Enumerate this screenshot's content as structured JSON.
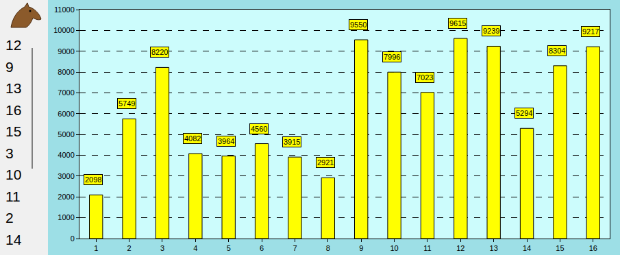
{
  "chart_data": {
    "type": "bar",
    "categories": [
      "1",
      "2",
      "3",
      "4",
      "5",
      "6",
      "7",
      "8",
      "9",
      "10",
      "11",
      "12",
      "13",
      "14",
      "15",
      "16"
    ],
    "values": [
      2098,
      5749,
      8220,
      4082,
      3964,
      4560,
      3915,
      2921,
      9550,
      7996,
      7023,
      9615,
      9239,
      5294,
      8304,
      9217
    ],
    "color": "#ffff00",
    "ylim": [
      0,
      11000
    ],
    "yticks": [
      0,
      1000,
      2000,
      3000,
      4000,
      5000,
      6000,
      7000,
      8000,
      9000,
      10000,
      11000
    ],
    "grid": true,
    "data_labels": true
  },
  "side_list": [
    12,
    9,
    13,
    16,
    15,
    3,
    10,
    11,
    2,
    14
  ]
}
